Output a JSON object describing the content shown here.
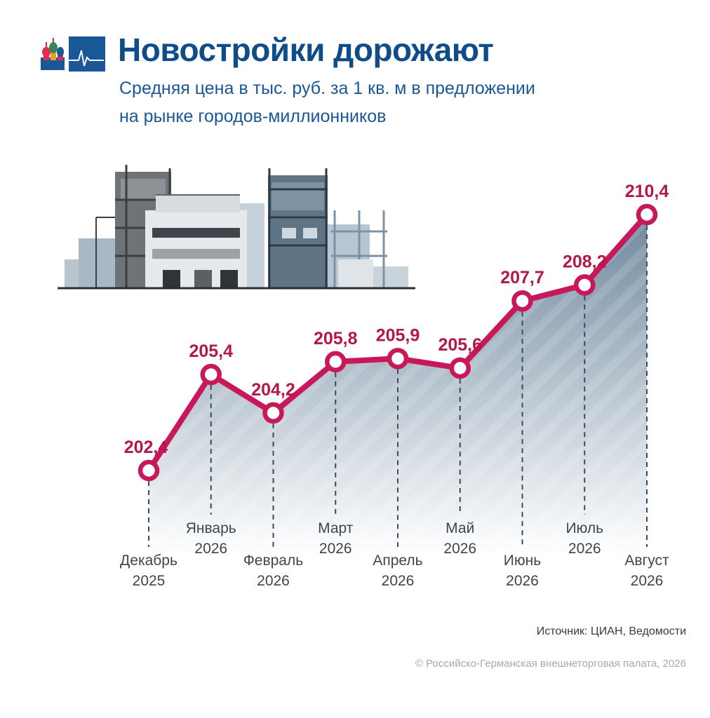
{
  "header": {
    "title": "Новостройки дорожают",
    "subtitle_line1": "Средняя цена в тыс. руб. за 1 кв. м в предложении",
    "subtitle_line2": "на рынке городов-миллионников"
  },
  "logo": {
    "icon": "moscow-cathedral-ecg-logo-icon",
    "colors": [
      "#1a5796",
      "#e22b56",
      "#ffffff"
    ]
  },
  "illustration": {
    "icon": "buildings-under-construction-icon"
  },
  "chart_data": {
    "type": "area",
    "categories": [
      "Декабрь 2025",
      "Январь 2026",
      "Февраль 2026",
      "Март 2026",
      "Апрель 2026",
      "Май 2026",
      "Июнь 2026",
      "Июль 2026",
      "Август 2026"
    ],
    "category_lines": [
      [
        "Декабрь",
        "2025"
      ],
      [
        "Январь",
        "2026"
      ],
      [
        "Февраль",
        "2026"
      ],
      [
        "Март",
        "2026"
      ],
      [
        "Апрель",
        "2026"
      ],
      [
        "Май",
        "2026"
      ],
      [
        "Июнь",
        "2026"
      ],
      [
        "Июль",
        "2026"
      ],
      [
        "Август",
        "2026"
      ]
    ],
    "values": [
      202.4,
      205.4,
      204.2,
      205.8,
      205.9,
      205.6,
      207.7,
      208.2,
      210.4
    ],
    "value_labels": [
      "202,4",
      "205,4",
      "204,2",
      "205,8",
      "205,9",
      "205,6",
      "207,7",
      "208,2",
      "210,4"
    ],
    "title": "Новостройки дорожают",
    "xlabel": "",
    "ylabel": "",
    "grid": false,
    "legend": "none",
    "colors": {
      "line": "#c8185a",
      "area_top": "#6f889f",
      "area_bottom": "#ffffff",
      "marker_fill": "#ffffff"
    }
  },
  "footer": {
    "source": "Источник: ЦИАН, Ведомости",
    "copyright": "© Российско-Германская внешнеторговая палата, 2026"
  }
}
